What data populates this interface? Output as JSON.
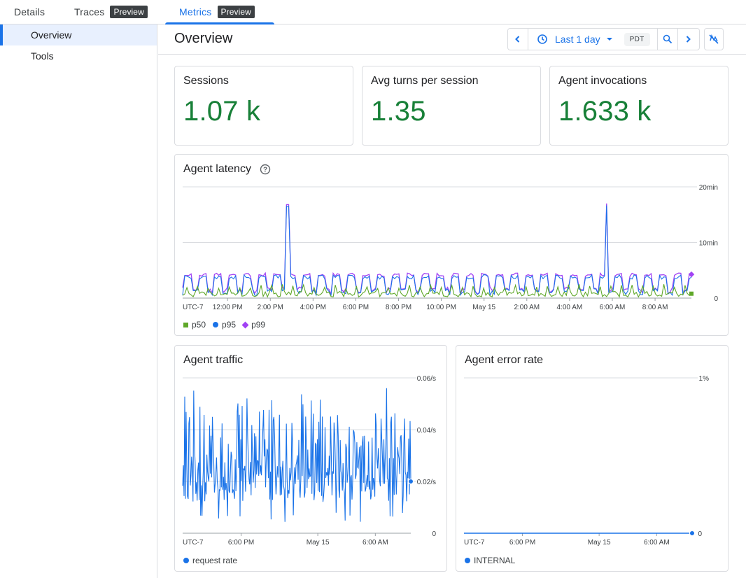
{
  "tabs": [
    {
      "label": "Details"
    },
    {
      "label": "Traces",
      "badge": "Preview"
    },
    {
      "label": "Metrics",
      "badge": "Preview"
    }
  ],
  "sidebar": {
    "items": [
      {
        "label": "Overview"
      },
      {
        "label": "Tools"
      }
    ]
  },
  "header": {
    "title": "Overview",
    "time_range": "Last 1 day",
    "timezone": "PDT"
  },
  "colors": {
    "accent": "#1a73e8",
    "kpi": "#188038",
    "p50": "#5fa829",
    "p95": "#1a73e8",
    "p99": "#a142f4"
  },
  "kpis": [
    {
      "label": "Sessions",
      "value": "1.07 k"
    },
    {
      "label": "Avg turns per session",
      "value": "1.35"
    },
    {
      "label": "Agent invocations",
      "value": "1.633 k"
    }
  ],
  "chart_data": [
    {
      "type": "line",
      "title": "Agent latency",
      "x_ticks": [
        "UTC-7",
        "12:00 PM",
        "2:00 PM",
        "4:00 PM",
        "6:00 PM",
        "8:00 PM",
        "10:00 PM",
        "May 15",
        "2:00 AM",
        "4:00 AM",
        "6:00 AM",
        "8:00 AM"
      ],
      "y_ticks": [
        "0",
        "10min",
        "20min"
      ],
      "ylim_minutes": [
        0,
        20
      ],
      "x_range_hours": [
        -1.1,
        22.7
      ],
      "grid": true,
      "legend": "bottom-left",
      "series": [
        {
          "name": "p50",
          "color": "#5fa829",
          "marker": "square",
          "typical_minutes": [
            0.2,
            2.5
          ]
        },
        {
          "name": "p95",
          "color": "#1a73e8",
          "marker": "circle",
          "typical_minutes": [
            0.5,
            4.2
          ]
        },
        {
          "name": "p99",
          "color": "#a142f4",
          "marker": "diamond",
          "typical_minutes": [
            0.5,
            4.5
          ],
          "spikes": [
            {
              "x_hours": 3.8,
              "value_minutes": 16.8
            },
            {
              "x_hours": 18.7,
              "value_minutes": 17.0
            }
          ]
        }
      ]
    },
    {
      "type": "line",
      "title": "Agent traffic",
      "x_ticks": [
        "UTC-7",
        "6:00 PM",
        "May 15",
        "6:00 AM"
      ],
      "y_ticks": [
        "0",
        "0.02/s",
        "0.04/s",
        "0.06/s"
      ],
      "ylim": [
        0,
        0.06
      ],
      "x_range_hours": [
        -1.1,
        22.7
      ],
      "grid": true,
      "legend": "bottom-left",
      "series": [
        {
          "name": "request rate",
          "color": "#1a73e8",
          "typical_range": [
            0.004,
            0.057
          ],
          "last_value": 0.02
        }
      ]
    },
    {
      "type": "line",
      "title": "Agent error rate",
      "x_ticks": [
        "UTC-7",
        "6:00 PM",
        "May 15",
        "6:00 AM"
      ],
      "y_ticks": [
        "0",
        "1%"
      ],
      "ylim_percent": [
        0,
        1
      ],
      "x_range_hours": [
        -1.1,
        22.7
      ],
      "grid": true,
      "legend": "bottom-left",
      "series": [
        {
          "name": "INTERNAL",
          "color": "#1a73e8",
          "value_percent": 0
        }
      ]
    }
  ]
}
